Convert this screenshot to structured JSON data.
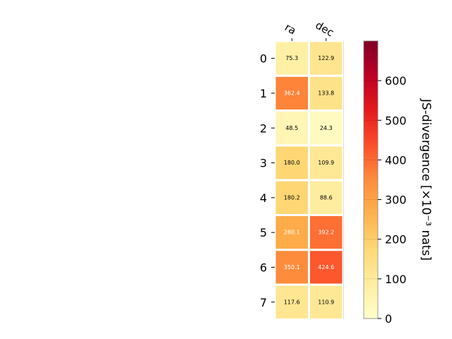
{
  "chart_data": {
    "type": "heatmap",
    "title": "",
    "columns": [
      "ra",
      "dec"
    ],
    "rows": [
      "0",
      "1",
      "2",
      "3",
      "4",
      "5",
      "6",
      "7"
    ],
    "values": [
      [
        75.3,
        122.9
      ],
      [
        362.4,
        133.8
      ],
      [
        48.5,
        24.3
      ],
      [
        180.0,
        109.9
      ],
      [
        180.2,
        88.6
      ],
      [
        280.1,
        392.2
      ],
      [
        350.1,
        424.6
      ],
      [
        117.6,
        110.9
      ]
    ],
    "cell_labels": [
      [
        "75.3",
        "122.9"
      ],
      [
        "362.4",
        "133.8"
      ],
      [
        "48.5",
        "24.3"
      ],
      [
        "180.0",
        "109.9"
      ],
      [
        "180.2",
        "88.6"
      ],
      [
        "280.1",
        "392.2"
      ],
      [
        "350.1",
        "424.6"
      ],
      [
        "117.6",
        "110.9"
      ]
    ],
    "colorbar": {
      "label": "JS-divergence [×10⁻³ nats]",
      "range": [
        0,
        700
      ],
      "ticks": [
        0,
        100,
        200,
        300,
        400,
        500,
        600
      ],
      "colormap": "YlOrRd"
    },
    "grid": false
  }
}
